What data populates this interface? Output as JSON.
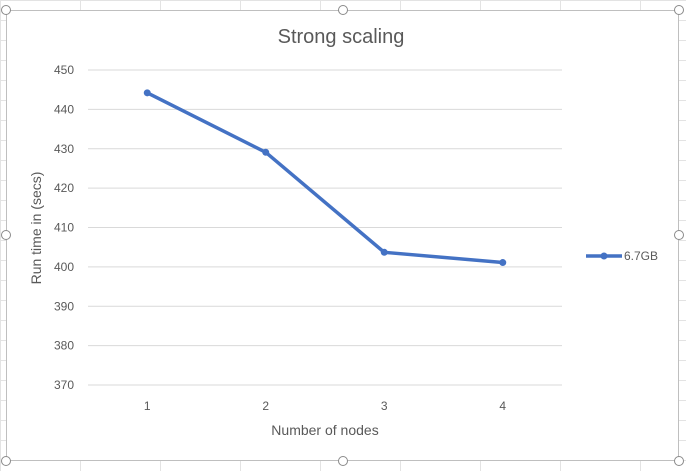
{
  "chart_data": {
    "type": "line",
    "title": "Strong scaling",
    "xlabel": "Number of nodes",
    "ylabel": "Run time in (secs)",
    "categories": [
      "1",
      "2",
      "3",
      "4"
    ],
    "ylim": [
      370,
      450
    ],
    "yticks": [
      "370",
      "380",
      "390",
      "400",
      "410",
      "420",
      "430",
      "440",
      "450"
    ],
    "grid": true,
    "legend_position": "right",
    "series": [
      {
        "name": "6.7GB",
        "values": [
          444.2,
          429.1,
          403.7,
          401.1
        ],
        "color": "#4472c4"
      }
    ]
  }
}
